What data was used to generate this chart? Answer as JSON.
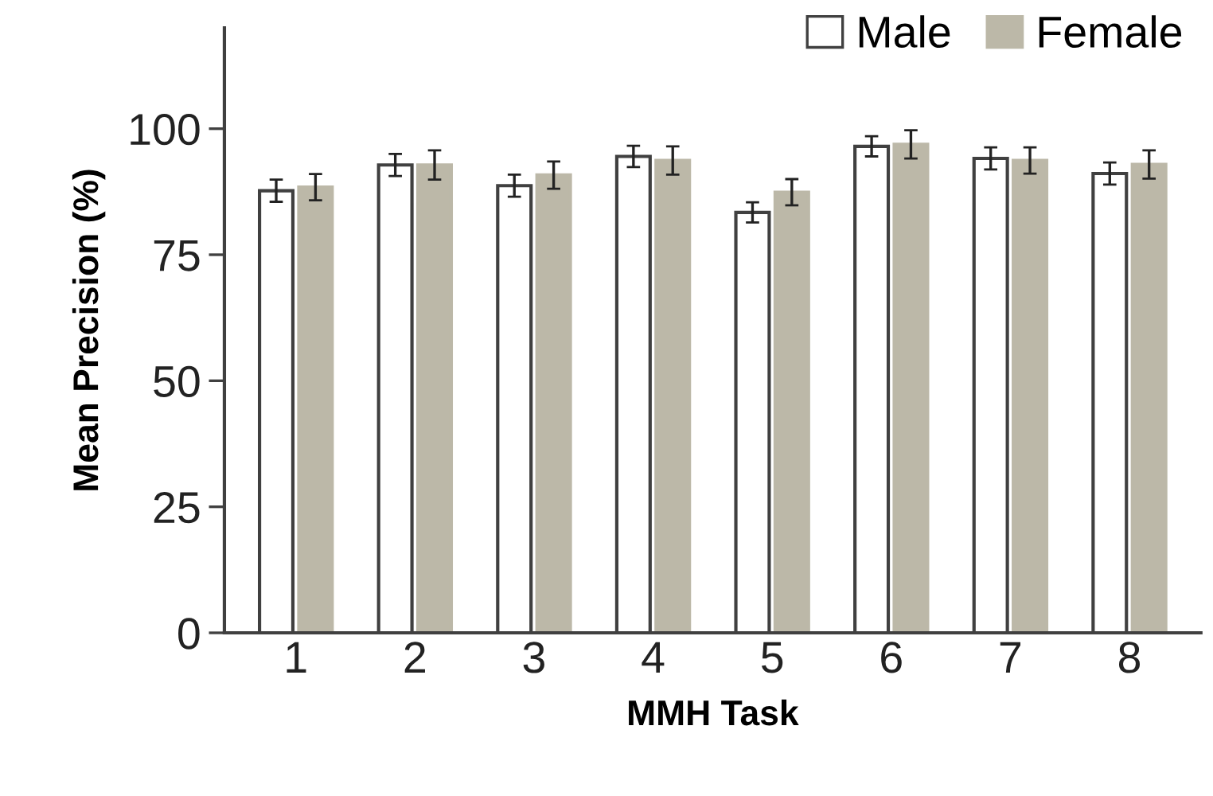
{
  "chart_data": {
    "type": "bar",
    "xlabel": "MMH Task",
    "ylabel": "Mean Precision (%)",
    "categories": [
      "1",
      "2",
      "3",
      "4",
      "5",
      "6",
      "7",
      "8"
    ],
    "series": [
      {
        "name": "Male",
        "color": "#ffffff",
        "values": [
          87.7,
          92.8,
          88.7,
          94.5,
          83.4,
          96.5,
          94.1,
          91.1
        ],
        "errors": [
          2.2,
          2.2,
          2.2,
          2.1,
          2.0,
          2.0,
          2.2,
          2.2
        ]
      },
      {
        "name": "Female",
        "color": "#bcb8a8",
        "values": [
          88.4,
          92.8,
          90.8,
          93.7,
          87.4,
          96.9,
          93.7,
          92.9
        ],
        "errors": [
          2.6,
          2.9,
          2.7,
          2.8,
          2.6,
          2.8,
          2.6,
          2.8
        ]
      }
    ],
    "ylim": [
      0,
      120
    ],
    "yticks": [
      0,
      25,
      50,
      75,
      100
    ],
    "grid": false,
    "legend": "top right"
  }
}
